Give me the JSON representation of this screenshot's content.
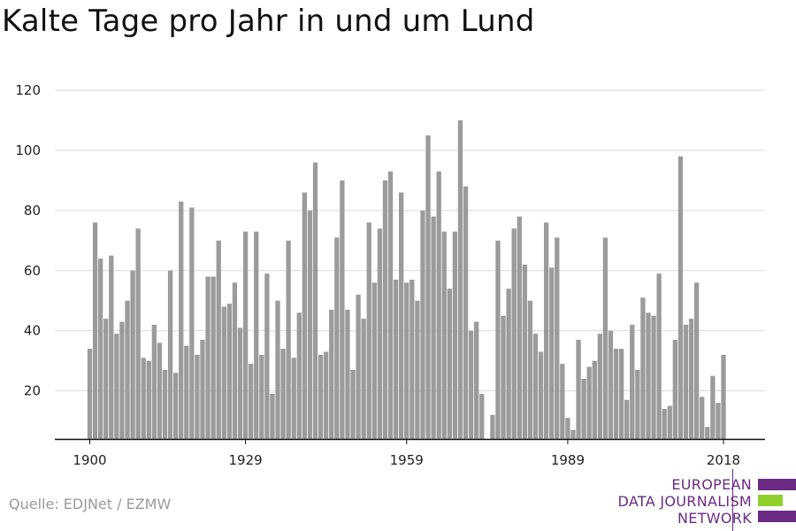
{
  "title": "Kalte Tage pro Jahr in und um Lund",
  "source": "Quelle: EDJNet / EZMW",
  "logo": {
    "lines": [
      "EUROPEAN",
      "DATA JOURNALISM",
      "NETWORK"
    ],
    "colors": {
      "purple": "#6b2a86",
      "green": "#8fd12a"
    }
  },
  "colors": {
    "bar": "#9b9b9b",
    "grid": "#d9d9d9",
    "axis": "#111111"
  },
  "chart_data": {
    "type": "bar",
    "title": "Kalte Tage pro Jahr in und um Lund",
    "xlabel": "",
    "ylabel": "",
    "ylim": [
      4,
      120
    ],
    "yticks": [
      20,
      40,
      60,
      80,
      100,
      120
    ],
    "xticks": [
      1900,
      1929,
      1959,
      1989,
      2018
    ],
    "grid": true,
    "years": [
      1900,
      1901,
      1902,
      1903,
      1904,
      1905,
      1906,
      1907,
      1908,
      1909,
      1910,
      1911,
      1912,
      1913,
      1914,
      1915,
      1916,
      1917,
      1918,
      1919,
      1920,
      1921,
      1922,
      1923,
      1924,
      1925,
      1926,
      1927,
      1928,
      1929,
      1930,
      1931,
      1932,
      1933,
      1934,
      1935,
      1936,
      1937,
      1938,
      1939,
      1940,
      1941,
      1942,
      1943,
      1944,
      1945,
      1946,
      1947,
      1948,
      1949,
      1950,
      1951,
      1952,
      1953,
      1954,
      1955,
      1956,
      1957,
      1958,
      1959,
      1960,
      1961,
      1962,
      1963,
      1964,
      1965,
      1966,
      1967,
      1968,
      1969,
      1970,
      1971,
      1972,
      1973,
      1974,
      1975,
      1976,
      1977,
      1978,
      1979,
      1980,
      1981,
      1982,
      1983,
      1984,
      1985,
      1986,
      1987,
      1988,
      1989,
      1990,
      1991,
      1992,
      1993,
      1994,
      1995,
      1996,
      1997,
      1998,
      1999,
      2000,
      2001,
      2002,
      2003,
      2004,
      2005,
      2006,
      2007,
      2008,
      2009,
      2010,
      2011,
      2012,
      2013,
      2014,
      2015,
      2016,
      2017,
      2018
    ],
    "values": [
      34,
      76,
      64,
      44,
      65,
      39,
      43,
      50,
      60,
      74,
      31,
      30,
      42,
      36,
      27,
      60,
      26,
      83,
      35,
      81,
      32,
      37,
      58,
      58,
      70,
      48,
      49,
      56,
      41,
      73,
      29,
      73,
      32,
      59,
      19,
      50,
      34,
      70,
      31,
      46,
      86,
      80,
      96,
      32,
      33,
      47,
      71,
      90,
      47,
      27,
      52,
      44,
      76,
      56,
      74,
      90,
      93,
      57,
      86,
      56,
      57,
      50,
      80,
      105,
      78,
      93,
      73,
      54,
      73,
      110,
      88,
      40,
      43,
      19,
      4,
      12,
      70,
      45,
      54,
      74,
      78,
      62,
      50,
      39,
      33,
      76,
      61,
      71,
      29,
      11,
      7,
      37,
      24,
      28,
      30,
      39,
      71,
      40,
      34,
      34,
      17,
      42,
      27,
      51,
      46,
      45,
      59,
      14,
      15,
      37,
      98,
      42,
      44,
      56,
      18,
      8,
      25,
      16,
      32
    ]
  }
}
